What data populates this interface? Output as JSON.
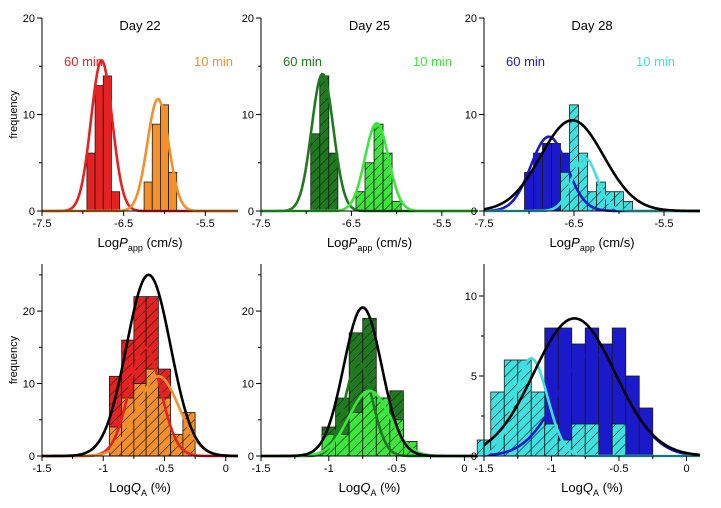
{
  "chart_data": [
    {
      "type": "bar",
      "title": "Day 22",
      "xlabel": "LogP_app (cm/s)",
      "xlabel_parts": {
        "prefix": "Log",
        "var": "P",
        "sub": "app",
        "suffix": " (cm/s)"
      },
      "ylabel": "frequency",
      "xlim": [
        -7.5,
        -5.1
      ],
      "ylim": [
        0,
        20
      ],
      "xticks": [
        -7.5,
        -6.5,
        -5.5
      ],
      "yticks": [
        0,
        10,
        20
      ],
      "bin_width": 0.1,
      "legend": [
        {
          "name": "60 min",
          "color": "#e52222"
        },
        {
          "name": "10 min",
          "color": "#f3902a"
        }
      ],
      "series": [
        {
          "name": "60 min",
          "color": "#e52222",
          "hatched": false,
          "x": [
            -7.0,
            -6.9,
            -6.8,
            -6.7,
            -6.6,
            -6.5,
            -6.4
          ],
          "values": [
            0,
            6,
            13,
            14,
            2,
            0,
            0
          ]
        },
        {
          "name": "10 min",
          "color": "#f3902a",
          "hatched": false,
          "x": [
            -6.3,
            -6.2,
            -6.1,
            -6.0,
            -5.9,
            -5.8,
            -5.7
          ],
          "values": [
            0,
            3,
            9,
            11,
            4,
            0,
            0
          ]
        }
      ],
      "fits": [
        {
          "color": "#e52222",
          "center": -6.77,
          "sigma": 0.13,
          "amplitude": 15.6
        },
        {
          "color": "#f3902a",
          "center": -6.08,
          "sigma": 0.13,
          "amplitude": 11.6
        }
      ]
    },
    {
      "type": "bar",
      "title": "Day 25",
      "xlabel": "LogP_app (cm/s)",
      "xlabel_parts": {
        "prefix": "Log",
        "var": "P",
        "sub": "app",
        "suffix": " (cm/s)"
      },
      "ylabel": "",
      "xlim": [
        -7.5,
        -5.1
      ],
      "ylim": [
        0,
        20
      ],
      "xticks": [
        -7.5,
        -6.5,
        -5.5
      ],
      "yticks": [
        0,
        10,
        20
      ],
      "bin_width": 0.1,
      "legend": [
        {
          "name": "60 min",
          "color": "#1f7a1f"
        },
        {
          "name": "10 min",
          "color": "#3ce63c"
        }
      ],
      "series": [
        {
          "name": "60 min",
          "color": "#1f7a1f",
          "hatched": true,
          "x": [
            -7.0,
            -6.9,
            -6.8,
            -6.7,
            -6.6
          ],
          "values": [
            0,
            8,
            14,
            6,
            0
          ]
        },
        {
          "name": "10 min",
          "color": "#3ce63c",
          "hatched": true,
          "x": [
            -6.4,
            -6.3,
            -6.2,
            -6.1,
            -6.0,
            -5.9,
            -5.8
          ],
          "values": [
            2,
            5,
            9,
            6,
            1,
            0,
            0
          ]
        }
      ],
      "fits": [
        {
          "color": "#1f7a1f",
          "center": -6.82,
          "sigma": 0.12,
          "amplitude": 14.2
        },
        {
          "color": "#3ce63c",
          "center": -6.22,
          "sigma": 0.13,
          "amplitude": 9.1
        }
      ]
    },
    {
      "type": "bar",
      "title": "Day 28",
      "xlabel": "LogP_app (cm/s)",
      "xlabel_parts": {
        "prefix": "Log",
        "var": "P",
        "sub": "app",
        "suffix": " (cm/s)"
      },
      "ylabel": "",
      "xlim": [
        -7.5,
        -5.1
      ],
      "ylim": [
        0,
        20
      ],
      "xticks": [
        -7.5,
        -6.5,
        -5.5
      ],
      "yticks": [
        0,
        10,
        20
      ],
      "bin_width": 0.1,
      "legend": [
        {
          "name": "60 min",
          "color": "#1a1acc"
        },
        {
          "name": "10 min",
          "color": "#3fe0e0"
        }
      ],
      "series": [
        {
          "name": "60 min",
          "color": "#1a1acc",
          "hatched": false,
          "x": [
            -7.1,
            -7.0,
            -6.9,
            -6.8,
            -6.7,
            -6.6,
            -6.5,
            -6.4
          ],
          "values": [
            0,
            4,
            6,
            7,
            7,
            6,
            3,
            2
          ]
        },
        {
          "name": "10 min",
          "color": "#3fe0e0",
          "hatched": true,
          "x": [
            -6.6,
            -6.5,
            -6.4,
            -6.3,
            -6.2,
            -6.1,
            -6.0,
            -5.9,
            -5.8
          ],
          "values": [
            4,
            11,
            6,
            2,
            3,
            2,
            2,
            1,
            0
          ]
        }
      ],
      "fits": [
        {
          "color": "#1a1acc",
          "center": -6.78,
          "sigma": 0.2,
          "amplitude": 7.7
        },
        {
          "color": "#3fe0e0",
          "center": -6.38,
          "sigma": 0.14,
          "amplitude": 5.5
        },
        {
          "color": "#000000",
          "center": -6.52,
          "sigma": 0.35,
          "amplitude": 9.4
        }
      ]
    },
    {
      "type": "bar",
      "title": "",
      "xlabel": "LogQ_A (%)",
      "xlabel_parts": {
        "prefix": "Log",
        "var": "Q",
        "sub": "A",
        "suffix": " (%)"
      },
      "ylabel": "frequency",
      "xlim": [
        -1.5,
        0.1
      ],
      "ylim": [
        0,
        26.5
      ],
      "xticks": [
        -1.5,
        -1.0,
        -0.5,
        0.0
      ],
      "yticks": [
        0,
        10,
        20
      ],
      "bin_width": 0.1,
      "series": [
        {
          "name": "60 min",
          "color": "#e52222",
          "hatched": true,
          "x": [
            -1.0,
            -0.9,
            -0.8,
            -0.7,
            -0.6,
            -0.5,
            -0.4,
            -0.3,
            -0.2
          ],
          "values": [
            0,
            11,
            16,
            22,
            22,
            12,
            0,
            0,
            0
          ]
        },
        {
          "name": "10 min",
          "color": "#f3902a",
          "hatched": true,
          "x": [
            -1.0,
            -0.9,
            -0.8,
            -0.7,
            -0.6,
            -0.5,
            -0.4,
            -0.3,
            -0.2
          ],
          "values": [
            0,
            4,
            8,
            10,
            12,
            8,
            3,
            6,
            0
          ]
        }
      ],
      "fits": [
        {
          "color": "#e52222",
          "center": -0.66,
          "sigma": 0.13,
          "amplitude": 15
        },
        {
          "color": "#f3902a",
          "center": -0.55,
          "sigma": 0.17,
          "amplitude": 11
        },
        {
          "color": "#000000",
          "center": -0.63,
          "sigma": 0.18,
          "amplitude": 25
        }
      ]
    },
    {
      "type": "bar",
      "title": "",
      "xlabel": "LogQ_A (%)",
      "xlabel_parts": {
        "prefix": "Log",
        "var": "Q",
        "sub": "A",
        "suffix": " (%)"
      },
      "ylabel": "",
      "xlim": [
        -1.5,
        0.1
      ],
      "ylim": [
        0,
        26.5
      ],
      "xticks": [
        -1.5,
        -1.0,
        -0.5,
        0.0
      ],
      "yticks": [
        0,
        10,
        20
      ],
      "bin_width": 0.1,
      "series": [
        {
          "name": "60 min",
          "color": "#1f7a1f",
          "hatched": true,
          "x": [
            -1.1,
            -1.0,
            -0.9,
            -0.8,
            -0.7,
            -0.6,
            -0.5,
            -0.4
          ],
          "values": [
            0,
            4,
            8,
            17,
            19,
            8,
            9,
            2
          ]
        },
        {
          "name": "10 min",
          "color": "#3ce63c",
          "hatched": true,
          "x": [
            -1.1,
            -1.0,
            -0.9,
            -0.8,
            -0.7,
            -0.6,
            -0.5,
            -0.4
          ],
          "values": [
            0,
            3,
            3,
            6,
            9,
            8,
            5,
            2
          ]
        }
      ],
      "fits": [
        {
          "color": "#1f7a1f",
          "center": -0.78,
          "sigma": 0.1,
          "amplitude": 13
        },
        {
          "color": "#3ce63c",
          "center": -0.7,
          "sigma": 0.15,
          "amplitude": 9
        },
        {
          "color": "#000000",
          "center": -0.75,
          "sigma": 0.14,
          "amplitude": 20.5
        }
      ]
    },
    {
      "type": "bar",
      "title": "",
      "xlabel": "LogQ_A (%)",
      "xlabel_parts": {
        "prefix": "Log",
        "var": "Q",
        "sub": "A",
        "suffix": " (%)"
      },
      "ylabel": "",
      "xlim": [
        -1.5,
        0.1
      ],
      "ylim": [
        0,
        12
      ],
      "xticks": [
        -1.5,
        -1.0,
        -0.5,
        0.0
      ],
      "yticks": [
        0,
        5,
        10
      ],
      "bin_width": 0.1,
      "series": [
        {
          "name": "60 min",
          "color": "#1a1acc",
          "hatched": false,
          "x": [
            -1.4,
            -1.3,
            -1.2,
            -1.1,
            -1.0,
            -0.9,
            -0.8,
            -0.7,
            -0.6,
            -0.5,
            -0.4,
            -0.3,
            -0.2
          ],
          "values": [
            0,
            0,
            0,
            0,
            8,
            8,
            7,
            8,
            7,
            8,
            5,
            3,
            0
          ]
        },
        {
          "name": "10 min",
          "color": "#3fe0e0",
          "hatched": true,
          "x": [
            -1.5,
            -1.4,
            -1.3,
            -1.2,
            -1.1,
            -1.0,
            -0.9,
            -0.8,
            -0.7,
            -0.6,
            -0.5,
            -0.4,
            -0.3
          ],
          "values": [
            1,
            4,
            6,
            6,
            4,
            2,
            1,
            2,
            2,
            0,
            2,
            0,
            0
          ]
        }
      ],
      "fits": [
        {
          "color": "#1a1acc",
          "center": -0.7,
          "sigma": 0.25,
          "amplitude": 6.4
        },
        {
          "color": "#3fe0e0",
          "center": -1.15,
          "sigma": 0.12,
          "amplitude": 6.1
        },
        {
          "color": "#000000",
          "center": -0.83,
          "sigma": 0.3,
          "amplitude": 8.6
        }
      ]
    }
  ]
}
